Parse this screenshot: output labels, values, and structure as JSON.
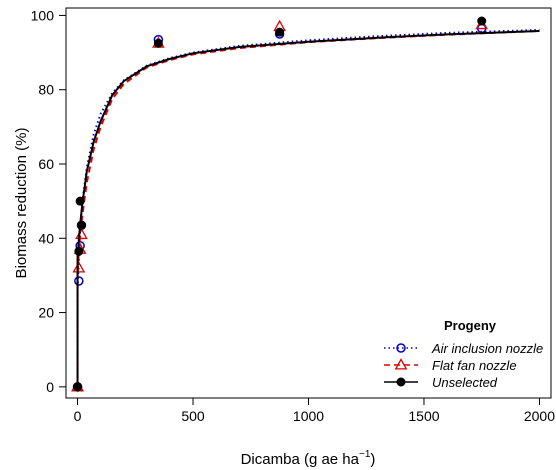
{
  "chart_data": {
    "type": "line",
    "title": "",
    "xlabel": "Dicamba (g ae ha",
    "xlabel_sup": "−1",
    "xlabel_close": ")",
    "ylabel": "Biomass reduction (%)",
    "xlim": [
      -50,
      2050
    ],
    "ylim": [
      -3,
      102
    ],
    "xticks": [
      0,
      500,
      1000,
      1500,
      2000
    ],
    "yticks": [
      0,
      20,
      40,
      60,
      80,
      100
    ],
    "grid": false,
    "legend_position": "bottom-right",
    "legend_title": "Progeny",
    "series": [
      {
        "name": "Air inclusion nozzle",
        "color": "#0000cc",
        "line_style": "dotted",
        "marker": "circle-open",
        "points": [
          [
            0,
            0
          ],
          [
            0,
            0
          ],
          [
            5.6,
            28.5
          ],
          [
            11.2,
            38.0
          ],
          [
            17,
            43.5
          ],
          [
            350,
            93.5
          ],
          [
            875,
            95.0
          ],
          [
            1750,
            96.5
          ]
        ],
        "curve": [
          [
            1,
            28
          ],
          [
            5,
            33
          ],
          [
            10,
            41
          ],
          [
            20,
            49.5
          ],
          [
            40,
            59
          ],
          [
            70,
            68
          ],
          [
            100,
            73.5
          ],
          [
            150,
            79
          ],
          [
            200,
            82.5
          ],
          [
            300,
            86.5
          ],
          [
            400,
            88.5
          ],
          [
            500,
            90
          ],
          [
            700,
            91.8
          ],
          [
            1000,
            93.3
          ],
          [
            1300,
            94.4
          ],
          [
            1600,
            95.3
          ],
          [
            2000,
            96.1
          ]
        ]
      },
      {
        "name": "Flat fan nozzle",
        "color": "#dd0000",
        "line_style": "dashed",
        "marker": "triangle-open",
        "points": [
          [
            0,
            0
          ],
          [
            0,
            0
          ],
          [
            5.6,
            32.0
          ],
          [
            11.2,
            37.0
          ],
          [
            17,
            41.0
          ],
          [
            350,
            92.5
          ],
          [
            875,
            97.0
          ],
          [
            1750,
            97.5
          ]
        ],
        "curve": [
          [
            1,
            31
          ],
          [
            5,
            36
          ],
          [
            10,
            40
          ],
          [
            20,
            46
          ],
          [
            40,
            55
          ],
          [
            70,
            64
          ],
          [
            100,
            70
          ],
          [
            150,
            77.5
          ],
          [
            200,
            81.5
          ],
          [
            300,
            86
          ],
          [
            400,
            88
          ],
          [
            500,
            89.5
          ],
          [
            700,
            91.2
          ],
          [
            1000,
            92.8
          ],
          [
            1300,
            93.9
          ],
          [
            1600,
            94.8
          ],
          [
            2000,
            95.8
          ]
        ]
      },
      {
        "name": "Unselected",
        "color": "#000000",
        "line_style": "solid",
        "marker": "circle-filled",
        "points": [
          [
            0,
            0
          ],
          [
            0,
            0
          ],
          [
            5.6,
            36.5
          ],
          [
            11.2,
            50.0
          ],
          [
            17,
            43.5
          ],
          [
            350,
            92.5
          ],
          [
            875,
            95.5
          ],
          [
            1750,
            98.5
          ]
        ],
        "curve": [
          [
            1,
            36
          ],
          [
            5,
            39
          ],
          [
            10,
            43
          ],
          [
            20,
            49
          ],
          [
            40,
            58
          ],
          [
            70,
            66
          ],
          [
            100,
            71.5
          ],
          [
            150,
            78.5
          ],
          [
            200,
            82.3
          ],
          [
            300,
            86.3
          ],
          [
            400,
            88.3
          ],
          [
            500,
            89.8
          ],
          [
            700,
            91.5
          ],
          [
            1000,
            92.9
          ],
          [
            1300,
            94.0
          ],
          [
            1600,
            94.9
          ],
          [
            2000,
            95.8
          ]
        ]
      }
    ]
  }
}
